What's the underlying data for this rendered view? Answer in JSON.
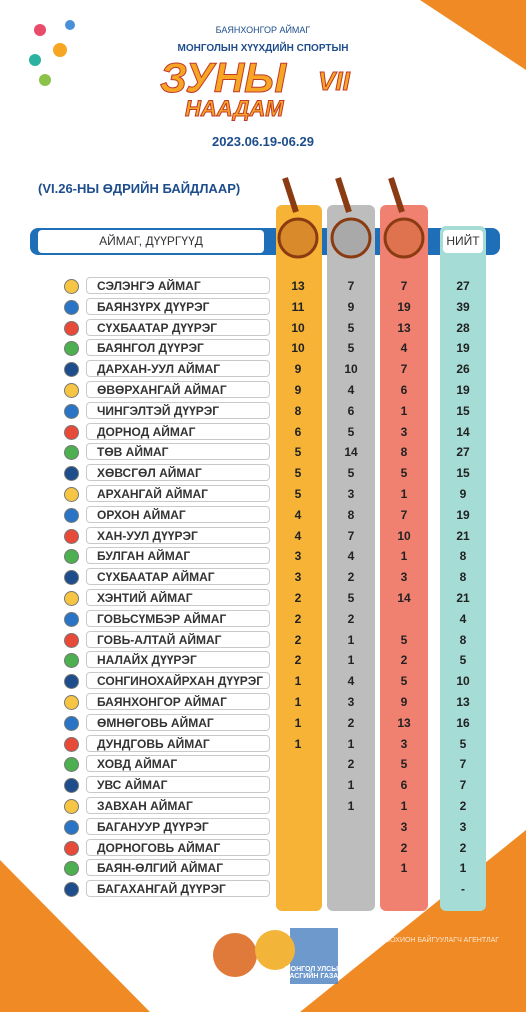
{
  "header": {
    "organizer": "БАЯНХОНГОР АЙМАГ",
    "subtitle": "МОНГОЛЫН ХҮҮХДИЙН СПОРТЫН",
    "title_top": "ЗУНЫ",
    "edition": "VII",
    "title_bottom": "НААДАМ",
    "dates": "2023.06.19-06.29"
  },
  "status": "(VI.26-НЫ ӨДРИЙН БАЙДЛААР)",
  "table": {
    "columns": {
      "name": "АЙМАГ, ДҮҮРГҮҮД",
      "total": "НИЙТ"
    },
    "rows": [
      [
        "СЭЛЭНГЭ АЙМАГ",
        13,
        7,
        7,
        27
      ],
      [
        "БАЯНЗҮРХ ДҮҮРЭГ",
        11,
        9,
        19,
        39
      ],
      [
        "СҮХБААТАР ДҮҮРЭГ",
        10,
        5,
        13,
        28
      ],
      [
        "БАЯНГОЛ ДҮҮРЭГ",
        10,
        5,
        4,
        19
      ],
      [
        "ДАРХАН-УУЛ АЙМАГ",
        9,
        10,
        7,
        26
      ],
      [
        "ӨВӨРХАНГАЙ АЙМАГ",
        9,
        4,
        6,
        19
      ],
      [
        "ЧИНГЭЛТЭЙ ДҮҮРЭГ",
        8,
        6,
        1,
        15
      ],
      [
        "ДОРНОД АЙМАГ",
        6,
        5,
        3,
        14
      ],
      [
        "ТӨВ АЙМАГ",
        5,
        14,
        8,
        27
      ],
      [
        "ХӨВСГӨЛ АЙМАГ",
        5,
        5,
        5,
        15
      ],
      [
        "АРХАНГАЙ АЙМАГ",
        5,
        3,
        1,
        9
      ],
      [
        "ОРХОН АЙМАГ",
        4,
        8,
        7,
        19
      ],
      [
        "ХАН-УУЛ ДҮҮРЭГ",
        4,
        7,
        10,
        21
      ],
      [
        "БУЛГАН АЙМАГ",
        3,
        4,
        1,
        8
      ],
      [
        "СҮХБААТАР АЙМАГ",
        3,
        2,
        3,
        8
      ],
      [
        "ХЭНТИЙ АЙМАГ",
        2,
        5,
        14,
        21
      ],
      [
        "ГОВЬСҮМБЭР АЙМАГ",
        2,
        2,
        null,
        4
      ],
      [
        "ГОВЬ-АЛТАЙ АЙМАГ",
        2,
        1,
        5,
        8
      ],
      [
        "НАЛАЙХ ДҮҮРЭГ",
        2,
        1,
        2,
        5
      ],
      [
        "СОНГИНОХАЙРХАН ДҮҮРЭГ",
        1,
        4,
        5,
        10
      ],
      [
        "БАЯНХОНГОР АЙМАГ",
        1,
        3,
        9,
        13
      ],
      [
        "ӨМНӨГОВЬ АЙМАГ",
        1,
        2,
        13,
        16
      ],
      [
        "ДУНДГОВЬ АЙМАГ",
        1,
        1,
        3,
        5
      ],
      [
        "ХОВД АЙМАГ",
        null,
        2,
        5,
        7
      ],
      [
        "УВС АЙМАГ",
        null,
        1,
        6,
        7
      ],
      [
        "ЗАВХАН АЙМАГ",
        null,
        1,
        1,
        2
      ],
      [
        "БАГАНУУР ДҮҮРЭГ",
        null,
        null,
        3,
        3
      ],
      [
        "ДОРНОГОВЬ АЙМАГ",
        null,
        null,
        2,
        2
      ],
      [
        "БАЯН-ӨЛГИЙ АЙМАГ",
        null,
        null,
        1,
        1
      ],
      [
        "БАГАХАНГАЙ ДҮҮРЭГ",
        null,
        null,
        null,
        "-"
      ]
    ]
  },
  "footer": {
    "logo_text": "МОНГОЛ УЛСЫН ЗАСГИЙН ГАЗАР",
    "agency": "ЗОХИОН БАЙГУУЛАГЧ АГЕНТЛАГ"
  }
}
